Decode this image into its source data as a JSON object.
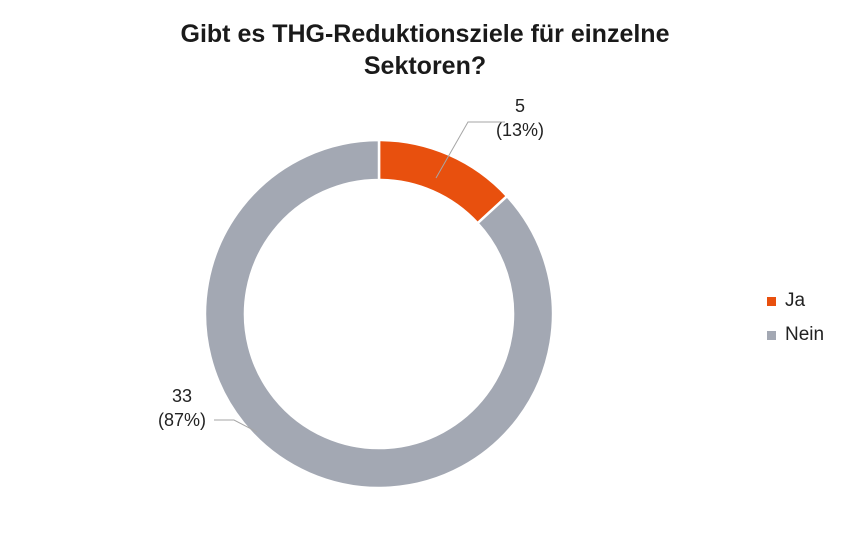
{
  "chart_data": {
    "type": "pie",
    "variant": "donut",
    "title_lines": [
      "Gibt es THG-Reduktionsziele für einzelne",
      "Sektoren?"
    ],
    "slices": [
      {
        "label": "Ja",
        "value": 5,
        "percent": "13%",
        "color": "#E8500E"
      },
      {
        "label": "Nein",
        "value": 33,
        "percent": "87%",
        "color": "#A3A8B3"
      }
    ],
    "legend_position": "right"
  }
}
